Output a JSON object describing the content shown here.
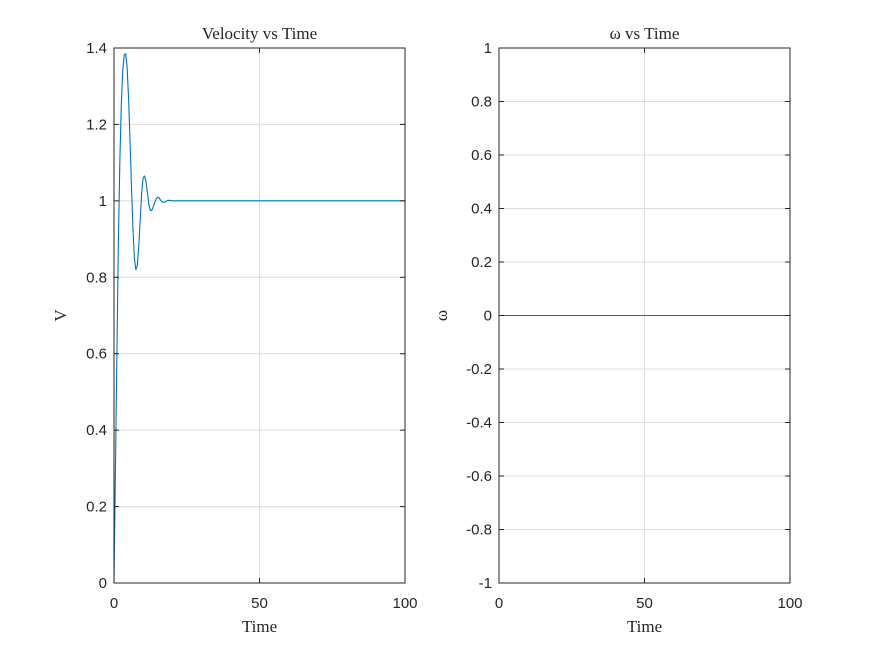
{
  "chart_data": [
    {
      "type": "line",
      "title": "Velocity vs Time",
      "xlabel": "Time",
      "ylabel": "V",
      "xlim": [
        0,
        100
      ],
      "ylim": [
        0,
        1.4
      ],
      "xticks": [
        0,
        50,
        100
      ],
      "yticks": [
        0,
        0.2,
        0.4,
        0.6,
        0.8,
        1,
        1.2,
        1.4
      ],
      "xtick_labels": [
        "0",
        "50",
        "100"
      ],
      "ytick_labels": [
        "0",
        "0.2",
        "0.4",
        "0.6",
        "0.8",
        "1",
        "1.2",
        "1.4"
      ],
      "grid": true,
      "series": [
        {
          "color": "#0072BD",
          "x": [
            0,
            0.5,
            1,
            1.5,
            2,
            2.5,
            3,
            3.5,
            4,
            4.5,
            5,
            5.5,
            6,
            6.5,
            7,
            7.5,
            8,
            8.5,
            9,
            9.5,
            10,
            10.5,
            11,
            11.5,
            12,
            12.5,
            13,
            13.5,
            14,
            14.5,
            15,
            15.5,
            16,
            16.5,
            17,
            17.5,
            18,
            18.5,
            19,
            19.5,
            20,
            20.5,
            21,
            22,
            23,
            24,
            25,
            26,
            27,
            28,
            30,
            35,
            40,
            45,
            50,
            55,
            60,
            65,
            70,
            75,
            80,
            85,
            90,
            95,
            100
          ],
          "values": [
            0,
            0.3,
            0.6,
            0.89,
            1.1,
            1.25,
            1.34,
            1.382,
            1.385,
            1.35,
            1.27,
            1.16,
            1.04,
            0.93,
            0.85,
            0.82,
            0.83,
            0.88,
            0.95,
            1.02,
            1.06,
            1.065,
            1.05,
            1.02,
            0.99,
            0.975,
            0.975,
            0.985,
            0.995,
            1.005,
            1.01,
            1.008,
            1.002,
            0.997,
            0.996,
            0.997,
            0.999,
            1.001,
            1.0015,
            1.001,
            1.0,
            1.0,
            1.0,
            1.0,
            1.0,
            1.0,
            1.0,
            1.0,
            1.0,
            1.0,
            1.0,
            1.0,
            1.0,
            1.0,
            1.0,
            1.0,
            1.0,
            1.0,
            1.0,
            1.0,
            1.0,
            1.0,
            1.0,
            1.0,
            1.0
          ]
        }
      ]
    },
    {
      "type": "line",
      "title": "ω vs Time",
      "xlabel": "Time",
      "ylabel": "ω",
      "xlim": [
        0,
        100
      ],
      "ylim": [
        -1,
        1
      ],
      "xticks": [
        0,
        50,
        100
      ],
      "yticks": [
        -1,
        -0.8,
        -0.6,
        -0.4,
        -0.2,
        0,
        0.2,
        0.4,
        0.6,
        0.8,
        1
      ],
      "xtick_labels": [
        "0",
        "50",
        "100"
      ],
      "ytick_labels": [
        "-1",
        "-0.8",
        "-0.6",
        "-0.4",
        "-0.2",
        "0",
        "0.2",
        "0.4",
        "0.6",
        "0.8",
        "1"
      ],
      "grid": true,
      "series": [
        {
          "color": "#0072BD",
          "x": [
            0,
            100
          ],
          "values": [
            0,
            0
          ]
        }
      ]
    }
  ]
}
